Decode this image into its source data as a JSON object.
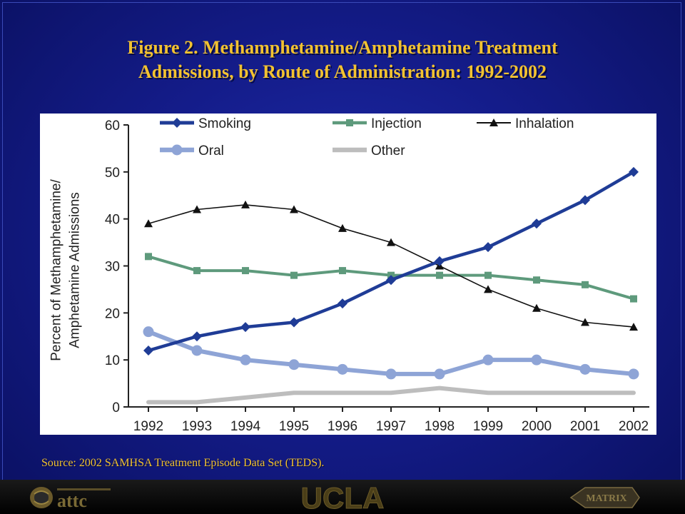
{
  "slide": {
    "title_line1": "Figure 2. Methamphetamine/Amphetamine Treatment",
    "title_line2": "Admissions, by Route of Administration: 1992-2002",
    "source": "Source: 2002 SAMHSA Treatment Episode Data Set (TEDS).",
    "footer_logos": {
      "left": "attc",
      "center": "UCLA",
      "right": "MATRIX"
    },
    "colors": {
      "background": "#141c8a",
      "title": "#f2c230"
    }
  },
  "chart_data": {
    "type": "line",
    "title": "",
    "xlabel": "",
    "ylabel": "Percent of Methamphetamine/ Amphetamine Admissions",
    "ylabel_lines": [
      "Percent of Methamphetamine/",
      "Amphetamine Admissions"
    ],
    "categories": [
      "1992",
      "1993",
      "1994",
      "1995",
      "1996",
      "1997",
      "1998",
      "1999",
      "2000",
      "2001",
      "2002"
    ],
    "ylim": [
      0,
      60
    ],
    "yticks": [
      0,
      10,
      20,
      30,
      40,
      50,
      60
    ],
    "grid": false,
    "legend_position": "top",
    "series": [
      {
        "name": "Smoking",
        "color": "#1f3c96",
        "marker": "diamond",
        "values": [
          12,
          15,
          17,
          18,
          22,
          27,
          31,
          34,
          39,
          44,
          50
        ]
      },
      {
        "name": "Injection",
        "color": "#5e9a7c",
        "marker": "square",
        "values": [
          32,
          29,
          29,
          28,
          29,
          28,
          28,
          28,
          27,
          26,
          23
        ]
      },
      {
        "name": "Inhalation",
        "color": "#111111",
        "marker": "triangle",
        "values": [
          39,
          42,
          43,
          42,
          38,
          35,
          30,
          25,
          21,
          18,
          17
        ]
      },
      {
        "name": "Oral",
        "color": "#8ea4d6",
        "marker": "circle",
        "values": [
          16,
          12,
          10,
          9,
          8,
          7,
          7,
          10,
          10,
          8,
          7
        ]
      },
      {
        "name": "Other",
        "color": "#bdbdbd",
        "marker": "none",
        "values": [
          1,
          1,
          2,
          3,
          3,
          3,
          4,
          3,
          3,
          3,
          3
        ]
      }
    ]
  }
}
